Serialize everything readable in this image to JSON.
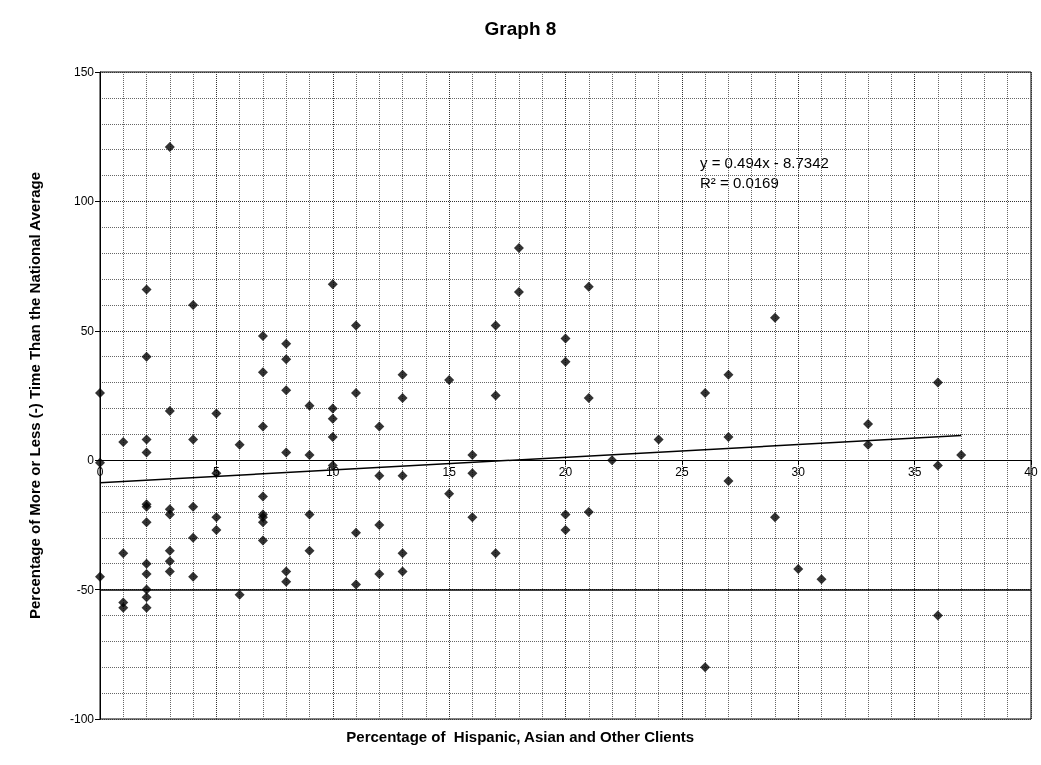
{
  "chart_data": {
    "type": "scatter",
    "title": "Graph 8",
    "xlabel": "Percentage of  Hispanic, Asian and Other Clients",
    "ylabel": "Percentage of More or Less (-) Time Than the National Average",
    "xlim": [
      0,
      40
    ],
    "ylim": [
      -100,
      150
    ],
    "xticks": [
      0,
      5,
      10,
      15,
      20,
      25,
      30,
      35,
      40
    ],
    "yticks": [
      -100,
      -50,
      0,
      50,
      100,
      150
    ],
    "grid": true,
    "marker": "diamond",
    "series": [
      {
        "color": "#000000",
        "x": [
          0,
          0,
          0,
          1,
          1,
          1,
          1,
          2,
          2,
          2,
          2,
          2,
          2,
          2,
          2,
          2,
          2,
          2,
          2,
          3,
          3,
          3,
          3,
          3,
          3,
          3,
          4,
          4,
          4,
          4,
          4,
          5,
          5,
          5,
          5,
          6,
          6,
          7,
          7,
          7,
          7,
          7,
          7,
          7,
          7,
          8,
          8,
          8,
          8,
          8,
          8,
          9,
          9,
          9,
          9,
          10,
          10,
          10,
          10,
          10,
          11,
          11,
          11,
          11,
          12,
          12,
          12,
          12,
          13,
          13,
          13,
          13,
          13,
          15,
          15,
          16,
          16,
          16,
          17,
          17,
          17,
          18,
          18,
          20,
          20,
          20,
          20,
          21,
          21,
          21,
          22,
          24,
          26,
          26,
          27,
          27,
          27,
          29,
          29,
          30,
          31,
          33,
          33,
          36,
          36,
          36,
          37
        ],
        "values": [
          26,
          -1,
          -45,
          7,
          -36,
          -55,
          -57,
          66,
          40,
          8,
          3,
          -17,
          -18,
          -24,
          -40,
          -44,
          -50,
          -53,
          -57,
          121,
          19,
          -19,
          -21,
          -35,
          -39,
          -43,
          60,
          8,
          -18,
          -30,
          -45,
          18,
          -5,
          -22,
          -27,
          6,
          -52,
          48,
          34,
          13,
          -14,
          -21,
          -22,
          -24,
          -31,
          45,
          39,
          27,
          3,
          -43,
          -47,
          21,
          2,
          -21,
          -35,
          68,
          20,
          16,
          9,
          -2,
          52,
          26,
          -28,
          -48,
          13,
          -6,
          -25,
          -44,
          33,
          24,
          -6,
          -36,
          -43,
          31,
          -13,
          2,
          -5,
          -22,
          52,
          25,
          -36,
          82,
          65,
          47,
          38,
          -21,
          -27,
          67,
          24,
          -20,
          0,
          8,
          26,
          -80,
          33,
          9,
          -8,
          55,
          -22,
          -42,
          -46,
          14,
          6,
          30,
          -2,
          -60,
          2
        ]
      },
      {
        "type": "line",
        "color": "#000000",
        "marker": "none",
        "x": [
          0,
          37
        ],
        "values": [
          -8.7,
          9.5
        ]
      }
    ],
    "ref_lines": [
      {
        "axis": "y",
        "value": -50,
        "color": "#000000"
      }
    ],
    "annotations": [
      "y = 0.494x - 8.7342",
      "R² = 0.0169"
    ]
  }
}
